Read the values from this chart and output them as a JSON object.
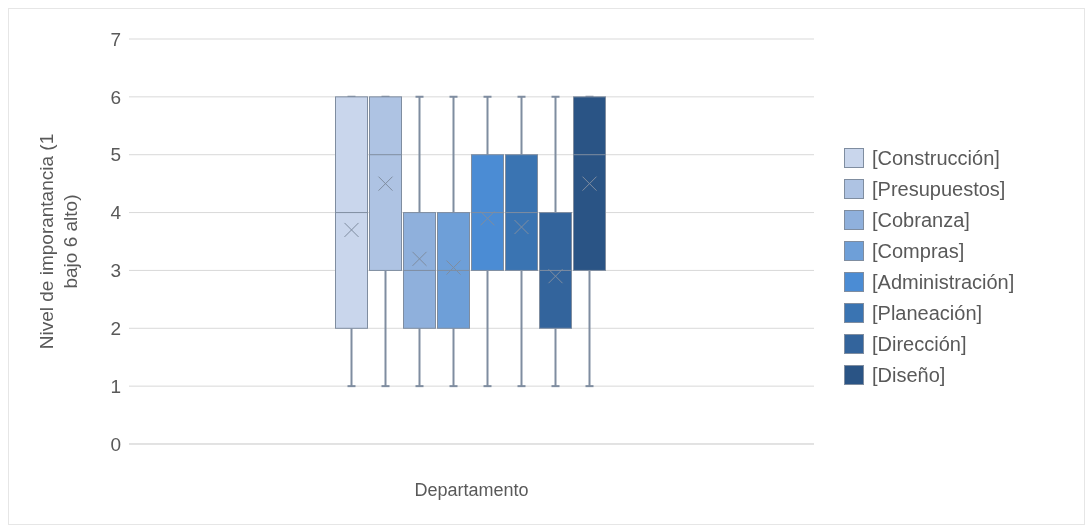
{
  "chart_data": {
    "type": "box",
    "xlabel": "Departamento",
    "ylabel": "Nivel de imporantancia (1 bajo 6 alto)",
    "categories": [
      null
    ],
    "ylim": [
      0,
      7
    ],
    "yticks": [
      0,
      1,
      2,
      3,
      4,
      5,
      6,
      7
    ],
    "grid": "y",
    "legend": "right",
    "series": [
      {
        "name": "[Construcción]",
        "color": "#c9d6ec",
        "boxes": [
          {
            "low": 1,
            "q1": 2,
            "median": 4,
            "q3": 6,
            "high": 6,
            "mean": 3.7
          }
        ]
      },
      {
        "name": "[Presupuestos]",
        "color": "#aec3e3",
        "boxes": [
          {
            "low": 1,
            "q1": 3,
            "median": 5,
            "q3": 6,
            "high": 6,
            "mean": 4.5
          }
        ]
      },
      {
        "name": "[Cobranza]",
        "color": "#8fb0dc",
        "boxes": [
          {
            "low": 1,
            "q1": 2,
            "median": 3,
            "q3": 4,
            "high": 6,
            "mean": 3.2
          }
        ]
      },
      {
        "name": "[Compras]",
        "color": "#6e9fd8",
        "boxes": [
          {
            "low": 1,
            "q1": 2,
            "median": 3,
            "q3": 4,
            "high": 6,
            "mean": 3.05
          }
        ]
      },
      {
        "name": "[Administración]",
        "color": "#4b8cd4",
        "boxes": [
          {
            "low": 1,
            "q1": 3,
            "median": 4,
            "q3": 5,
            "high": 6,
            "mean": 3.9
          }
        ]
      },
      {
        "name": "[Planeación]",
        "color": "#3a74b2",
        "boxes": [
          {
            "low": 1,
            "q1": 3,
            "median": 4,
            "q3": 5,
            "high": 6,
            "mean": 3.75
          }
        ]
      },
      {
        "name": "[Dirección]",
        "color": "#33649c",
        "boxes": [
          {
            "low": 1,
            "q1": 2,
            "median": 3,
            "q3": 4,
            "high": 6,
            "mean": 2.9
          }
        ]
      },
      {
        "name": "[Diseño]",
        "color": "#2a5485",
        "boxes": [
          {
            "low": 1,
            "q1": 3,
            "median": 5,
            "q3": 6,
            "high": 6,
            "mean": 4.5
          }
        ]
      }
    ]
  }
}
